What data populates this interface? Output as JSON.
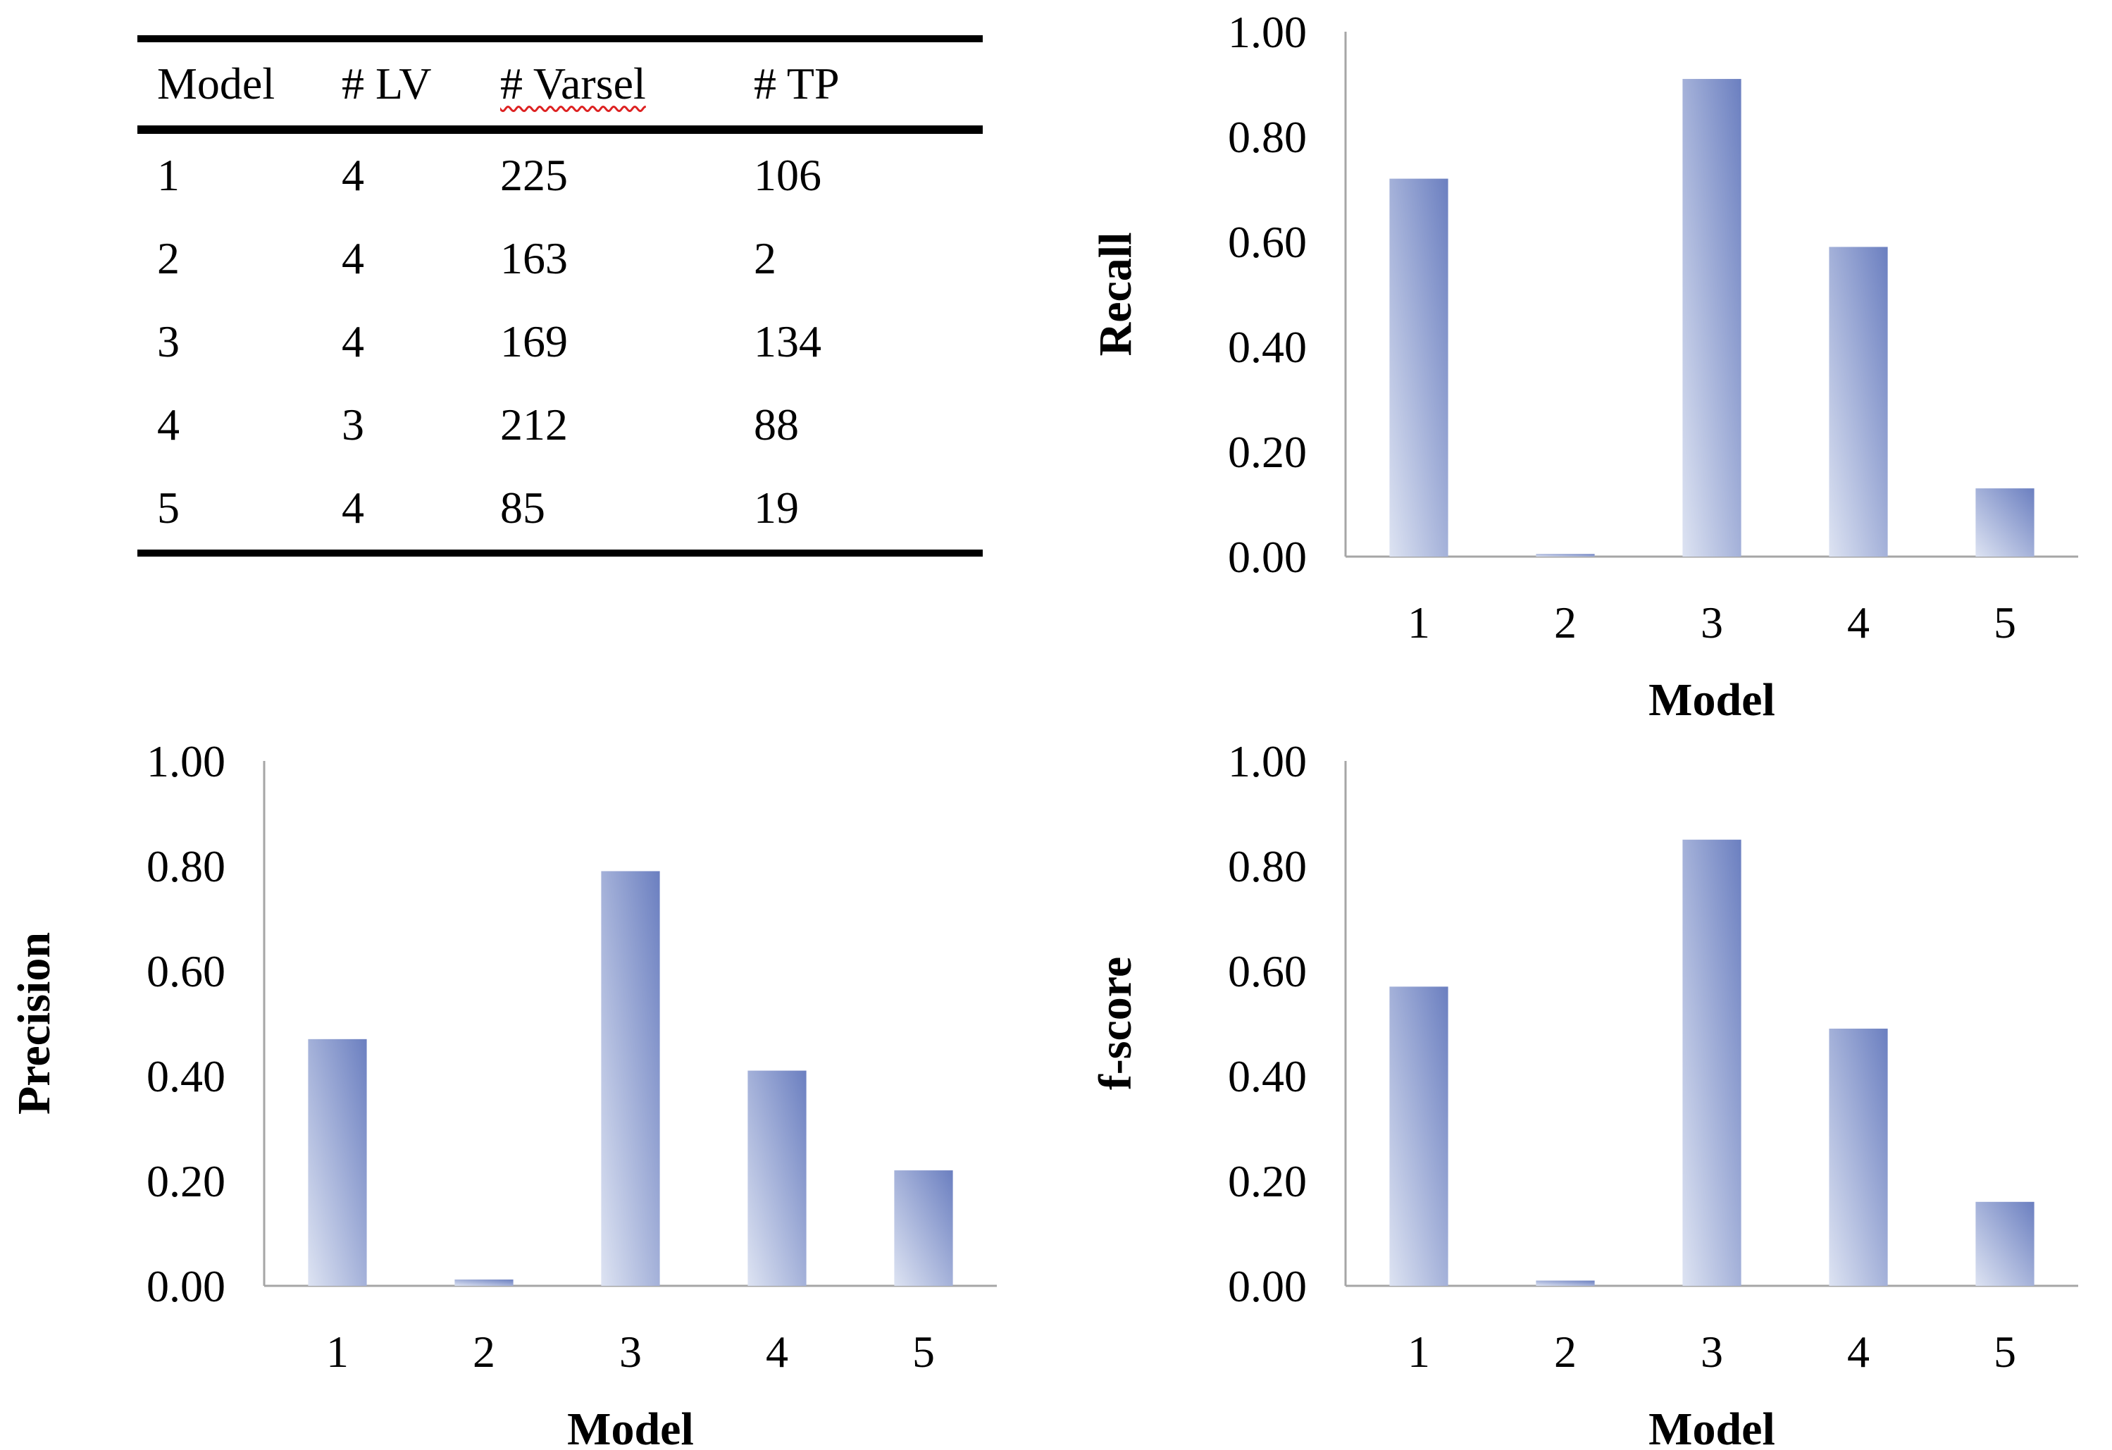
{
  "table": {
    "headers": [
      "Model",
      "# LV",
      "# Varsel",
      "# TP"
    ],
    "rows": [
      [
        "1",
        "4",
        "225",
        "106"
      ],
      [
        "2",
        "4",
        "163",
        "2"
      ],
      [
        "3",
        "4",
        "169",
        "134"
      ],
      [
        "4",
        "3",
        "212",
        "88"
      ],
      [
        "5",
        "4",
        "85",
        "19"
      ]
    ]
  },
  "colors": {
    "bar_dark": "#6b7fc0",
    "bar_light": "#dde3f2",
    "axis": "#a6a6a6"
  },
  "chart_data": [
    {
      "id": "recall",
      "type": "bar",
      "title": "",
      "xlabel": "Model",
      "ylabel": "Recall",
      "categories": [
        "1",
        "2",
        "3",
        "4",
        "5"
      ],
      "values": [
        0.72,
        0.005,
        0.91,
        0.59,
        0.13
      ],
      "ylim": [
        0,
        1
      ],
      "yticks": [
        "0.00",
        "0.20",
        "0.40",
        "0.60",
        "0.80",
        "1.00"
      ],
      "grid": false
    },
    {
      "id": "precision",
      "type": "bar",
      "title": "",
      "xlabel": "Model",
      "ylabel": "Precision",
      "categories": [
        "1",
        "2",
        "3",
        "4",
        "5"
      ],
      "values": [
        0.47,
        0.012,
        0.79,
        0.41,
        0.22
      ],
      "ylim": [
        0,
        1
      ],
      "yticks": [
        "0.00",
        "0.20",
        "0.40",
        "0.60",
        "0.80",
        "1.00"
      ],
      "grid": false
    },
    {
      "id": "fscore",
      "type": "bar",
      "title": "",
      "xlabel": "Model",
      "ylabel": "f-score",
      "categories": [
        "1",
        "2",
        "3",
        "4",
        "5"
      ],
      "values": [
        0.57,
        0.01,
        0.85,
        0.49,
        0.16
      ],
      "ylim": [
        0,
        1
      ],
      "yticks": [
        "0.00",
        "0.20",
        "0.40",
        "0.60",
        "0.80",
        "1.00"
      ],
      "grid": false
    }
  ]
}
